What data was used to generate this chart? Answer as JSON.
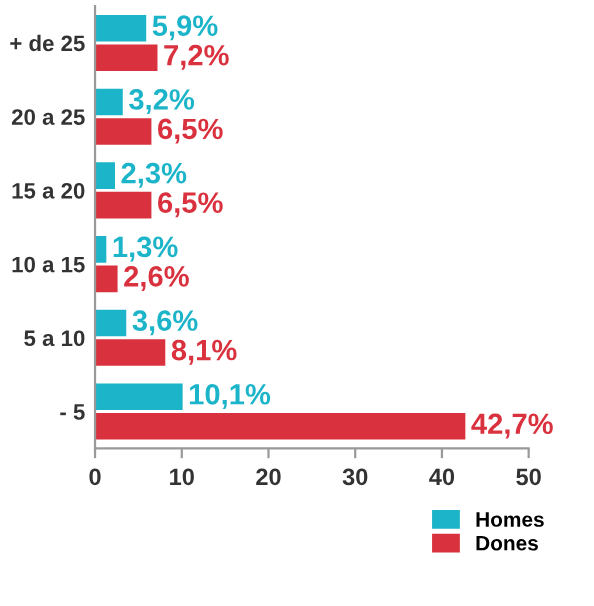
{
  "chart_data": {
    "type": "bar",
    "orientation": "horizontal",
    "categories": [
      "+ de 25",
      "20 a 25",
      "15 a 20",
      "10 a 15",
      "5 a 10",
      "- 5"
    ],
    "series": [
      {
        "name": "Homes",
        "color": "#1cb4c8",
        "values": [
          5.9,
          3.2,
          2.3,
          1.3,
          3.6,
          10.1
        ],
        "value_labels": [
          "5,9%",
          "3,2%",
          "2,3%",
          "1,3%",
          "3,6%",
          "10,1%"
        ]
      },
      {
        "name": "Dones",
        "color": "#d9323e",
        "values": [
          7.2,
          6.5,
          6.5,
          2.6,
          8.1,
          42.7
        ],
        "value_labels": [
          "7,2%",
          "6,5%",
          "6,5%",
          "2,6%",
          "8,1%",
          "42,7%"
        ]
      }
    ],
    "xlim": [
      0,
      50
    ],
    "xticks": [
      0,
      10,
      20,
      30,
      40,
      50
    ],
    "grid": false,
    "legend": "bottom right"
  }
}
